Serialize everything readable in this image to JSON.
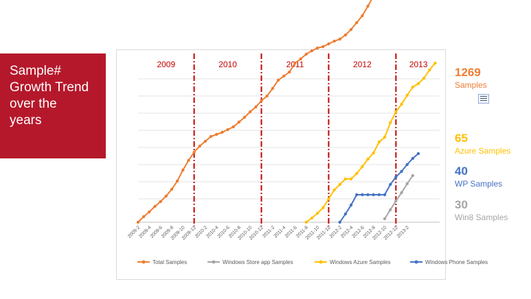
{
  "title": "Sample#\nGrowth Trend\nover the\nyears",
  "side_labels": [
    {
      "value": "1269",
      "label": "Samples",
      "color": "#ed7d31"
    },
    {
      "value": "65",
      "label": "Azure Samples",
      "color": "#ffc000"
    },
    {
      "value": "40",
      "label": "WP Samples",
      "color": "#4472c4"
    },
    {
      "value": "30",
      "label": "Win8 Samples",
      "color": "#a5a5a5"
    }
  ],
  "chart_data": {
    "type": "line",
    "year_bands": [
      "2009",
      "2010",
      "2011",
      "2012",
      "2013"
    ],
    "year_divider_color": "#c00000",
    "x_ticks": [
      "2009-2",
      "2009-4",
      "2009-6",
      "2009-8",
      "2009-10",
      "2009-12",
      "2010-2",
      "2010-4",
      "2010-6",
      "2010-8",
      "2010-10",
      "2010-12",
      "2011-2",
      "2011-4",
      "2011-6",
      "2011-8",
      "2011-10",
      "2011-12",
      "2012-2",
      "2012-4",
      "2012-6",
      "2012-8",
      "2012-10",
      "2012-12",
      "2013-2"
    ],
    "legend_position": "bottom",
    "grid": "horizontal",
    "series": [
      {
        "name": "Total Samples",
        "color": "#ed7d31",
        "start": "2009-2",
        "values": [
          0,
          8,
          15,
          23,
          30,
          38,
          48,
          60,
          76,
          90,
          102,
          111,
          118,
          125,
          128,
          131,
          135,
          139,
          146,
          153,
          161,
          168,
          177,
          184,
          195,
          207,
          213,
          219,
          232,
          238,
          245,
          250,
          254,
          256,
          260,
          264,
          267,
          273,
          281,
          291,
          301,
          315,
          330,
          345,
          361,
          376,
          385,
          392,
          396,
          402,
          423,
          444,
          466
        ]
      },
      {
        "name": "Windows Store app Samples",
        "color": "#a5a5a5",
        "start": "2012-10",
        "values": [
          5,
          18,
          31,
          43,
          56,
          68
        ]
      },
      {
        "name": "Windows Azure Samples",
        "color": "#ffc000",
        "start": "2011-8",
        "values": [
          0,
          6,
          13,
          21,
          34,
          47,
          55,
          63,
          63,
          71,
          81,
          92,
          101,
          117,
          124,
          145,
          161,
          172,
          185,
          197,
          202,
          210,
          222,
          232
        ]
      },
      {
        "name": "Windows Phone Samples",
        "color": "#4472c4",
        "start": "2012-2",
        "values": [
          0,
          12,
          25,
          40,
          40,
          40,
          40,
          40,
          40,
          55,
          66,
          74,
          84,
          93,
          100
        ]
      }
    ]
  }
}
